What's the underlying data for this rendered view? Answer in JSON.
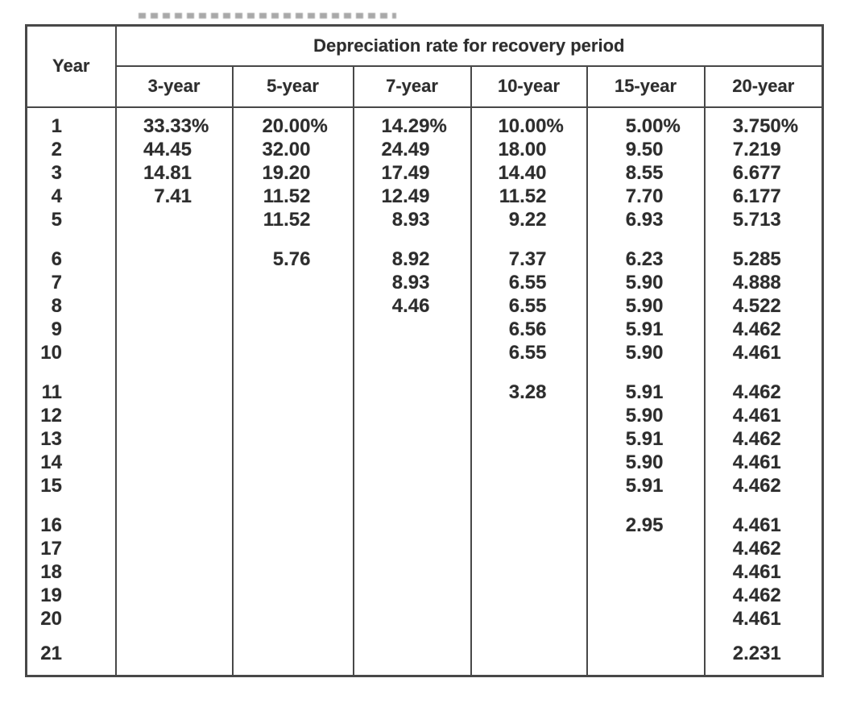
{
  "header": {
    "year_label": "Year",
    "group_label": "Depreciation rate for recovery period",
    "columns": [
      "3-year",
      "5-year",
      "7-year",
      "10-year",
      "15-year",
      "20-year"
    ]
  },
  "chart_data": {
    "type": "table",
    "title": "Depreciation rate for recovery period",
    "columns": [
      "Year",
      "3-year",
      "5-year",
      "7-year",
      "10-year",
      "15-year",
      "20-year"
    ],
    "groups": [
      [
        [
          "1",
          "33.33%",
          "20.00%",
          "14.29%",
          "10.00%",
          "5.00%",
          "3.750%"
        ],
        [
          "2",
          "44.45",
          "32.00",
          "24.49",
          "18.00",
          "9.50",
          "7.219"
        ],
        [
          "3",
          "14.81",
          "19.20",
          "17.49",
          "14.40",
          "8.55",
          "6.677"
        ],
        [
          "4",
          "7.41",
          "11.52",
          "12.49",
          "11.52",
          "7.70",
          "6.177"
        ],
        [
          "5",
          "",
          "11.52",
          "8.93",
          "9.22",
          "6.93",
          "5.713"
        ]
      ],
      [
        [
          "6",
          "",
          "5.76",
          "8.92",
          "7.37",
          "6.23",
          "5.285"
        ],
        [
          "7",
          "",
          "",
          "8.93",
          "6.55",
          "5.90",
          "4.888"
        ],
        [
          "8",
          "",
          "",
          "4.46",
          "6.55",
          "5.90",
          "4.522"
        ],
        [
          "9",
          "",
          "",
          "",
          "6.56",
          "5.91",
          "4.462"
        ],
        [
          "10",
          "",
          "",
          "",
          "6.55",
          "5.90",
          "4.461"
        ]
      ],
      [
        [
          "11",
          "",
          "",
          "",
          "3.28",
          "5.91",
          "4.462"
        ],
        [
          "12",
          "",
          "",
          "",
          "",
          "5.90",
          "4.461"
        ],
        [
          "13",
          "",
          "",
          "",
          "",
          "5.91",
          "4.462"
        ],
        [
          "14",
          "",
          "",
          "",
          "",
          "5.90",
          "4.461"
        ],
        [
          "15",
          "",
          "",
          "",
          "",
          "5.91",
          "4.462"
        ]
      ],
      [
        [
          "16",
          "",
          "",
          "",
          "",
          "2.95",
          "4.461"
        ],
        [
          "17",
          "",
          "",
          "",
          "",
          "",
          "4.462"
        ],
        [
          "18",
          "",
          "",
          "",
          "",
          "",
          "4.461"
        ],
        [
          "19",
          "",
          "",
          "",
          "",
          "",
          "4.462"
        ],
        [
          "20",
          "",
          "",
          "",
          "",
          "",
          "4.461"
        ]
      ],
      [
        [
          "21",
          "",
          "",
          "",
          "",
          "",
          "2.231"
        ]
      ]
    ]
  },
  "colors": {
    "border": "#484848",
    "text": "#2d2d2d",
    "background": "#ffffff"
  }
}
